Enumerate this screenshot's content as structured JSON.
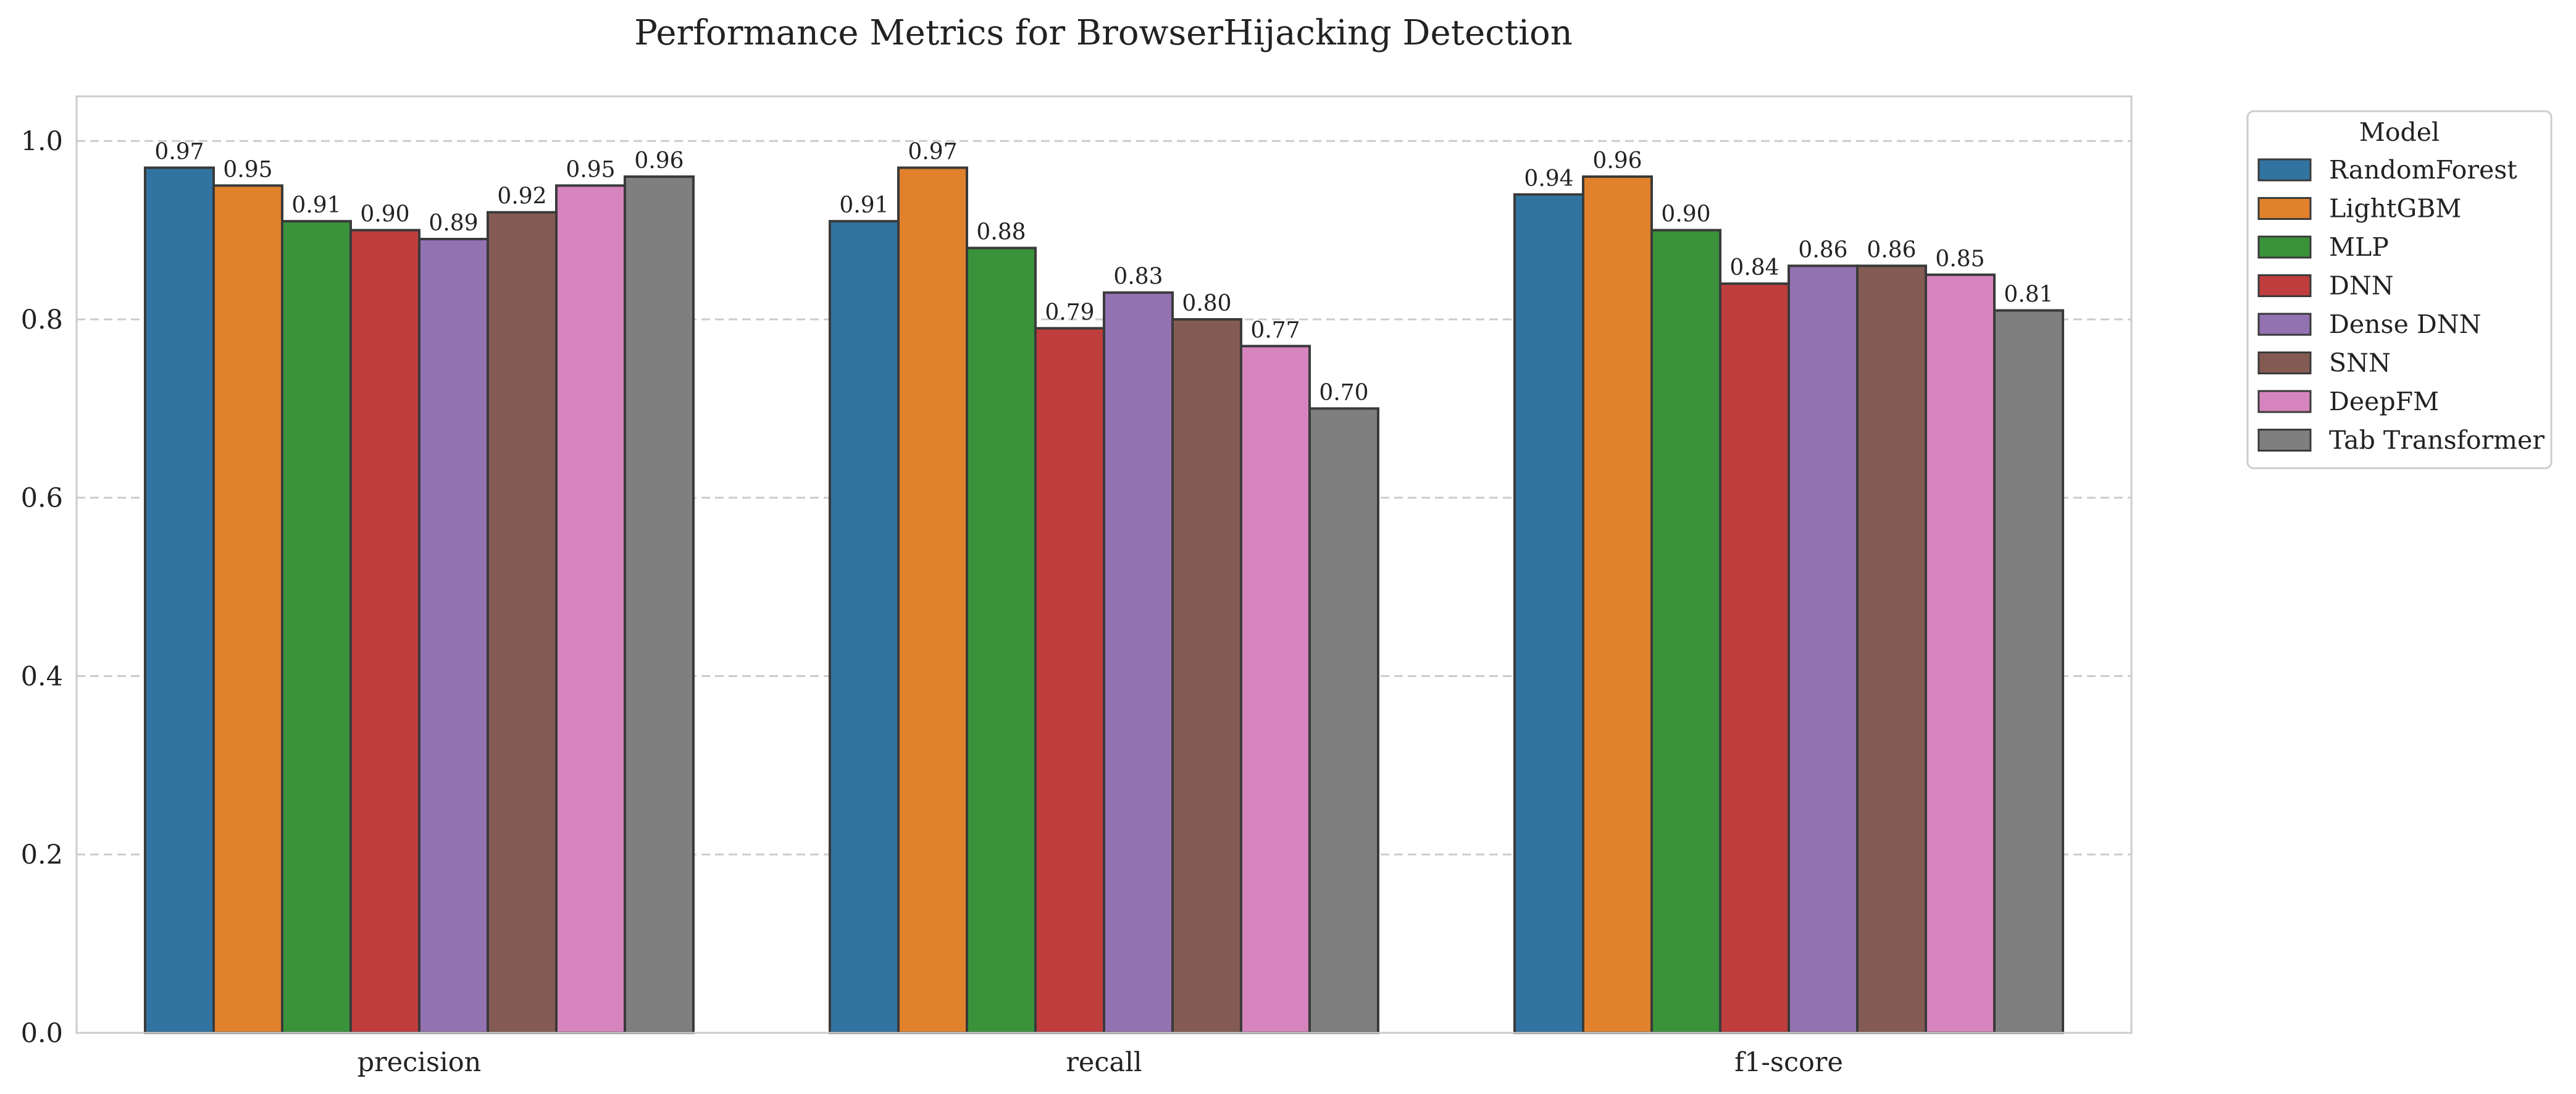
{
  "chart_data": {
    "type": "bar",
    "title": "Performance Metrics for BrowserHijacking Detection",
    "xlabel": "",
    "ylabel": "",
    "categories": [
      "precision",
      "recall",
      "f1-score"
    ],
    "series": [
      {
        "name": "RandomForest",
        "values": [
          0.97,
          0.91,
          0.94
        ],
        "labels": [
          "0.97",
          "0.91",
          "0.94"
        ],
        "color": "#3274a1"
      },
      {
        "name": "LightGBM",
        "values": [
          0.95,
          0.97,
          0.96
        ],
        "labels": [
          "0.95",
          "0.97",
          "0.96"
        ],
        "color": "#e1812c"
      },
      {
        "name": "MLP",
        "values": [
          0.91,
          0.88,
          0.9
        ],
        "labels": [
          "0.91",
          "0.88",
          "0.90"
        ],
        "color": "#3a923a"
      },
      {
        "name": "DNN",
        "values": [
          0.9,
          0.79,
          0.84
        ],
        "labels": [
          "0.90",
          "0.79",
          "0.84"
        ],
        "color": "#c03d3e"
      },
      {
        "name": "Dense DNN",
        "values": [
          0.89,
          0.83,
          0.86
        ],
        "labels": [
          "0.89",
          "0.83",
          "0.86"
        ],
        "color": "#9372b2"
      },
      {
        "name": "SNN",
        "values": [
          0.92,
          0.8,
          0.86
        ],
        "labels": [
          "0.92",
          "0.80",
          "0.86"
        ],
        "color": "#845b53"
      },
      {
        "name": "DeepFM",
        "values": [
          0.95,
          0.77,
          0.85
        ],
        "labels": [
          "0.95",
          "0.77",
          "0.85"
        ],
        "color": "#d684bd"
      },
      {
        "name": "Tab Transformer",
        "values": [
          0.96,
          0.7,
          0.81
        ],
        "labels": [
          "0.96",
          "0.70",
          "0.81"
        ],
        "color": "#7f7f7f"
      }
    ],
    "yticks": [
      "0.0",
      "0.2",
      "0.4",
      "0.6",
      "0.8",
      "1.0"
    ],
    "ylim": [
      0,
      1.05
    ],
    "grid": "horizontal dashed",
    "legend": {
      "title": "Model",
      "placement": "outside-right"
    }
  }
}
